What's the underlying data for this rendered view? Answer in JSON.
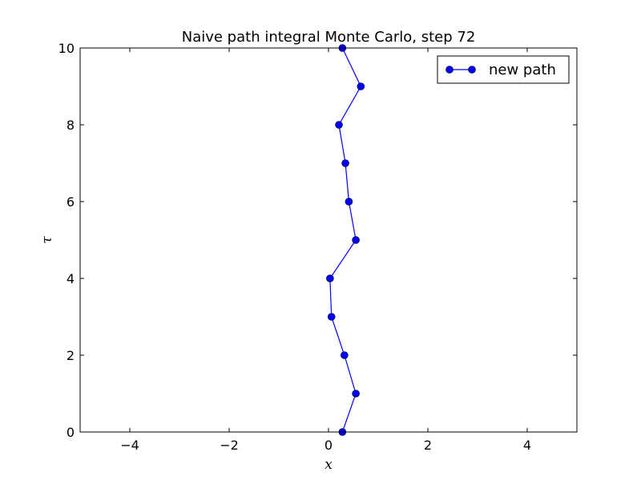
{
  "chart_data": {
    "type": "line",
    "title": "Naive path integral Monte Carlo, step 72",
    "xlabel": "x",
    "ylabel": "τ",
    "xlim": [
      -5,
      5
    ],
    "ylim": [
      0,
      10
    ],
    "xticks": [
      -4,
      -2,
      0,
      2,
      4
    ],
    "yticks": [
      0,
      2,
      4,
      6,
      8,
      10
    ],
    "xtick_labels": [
      "−4",
      "−2",
      "0",
      "2",
      "4"
    ],
    "ytick_labels": [
      "0",
      "2",
      "4",
      "6",
      "8",
      "10"
    ],
    "grid": false,
    "legend_position": "top-right",
    "series": [
      {
        "name": "new path",
        "color": "#0000ff",
        "marker": "circle",
        "points": [
          {
            "x": 0.28,
            "y": 0
          },
          {
            "x": 0.55,
            "y": 1
          },
          {
            "x": 0.32,
            "y": 2
          },
          {
            "x": 0.06,
            "y": 3
          },
          {
            "x": 0.03,
            "y": 4
          },
          {
            "x": 0.55,
            "y": 5
          },
          {
            "x": 0.41,
            "y": 6
          },
          {
            "x": 0.34,
            "y": 7
          },
          {
            "x": 0.21,
            "y": 8
          },
          {
            "x": 0.65,
            "y": 9
          },
          {
            "x": 0.28,
            "y": 10
          }
        ]
      }
    ]
  }
}
